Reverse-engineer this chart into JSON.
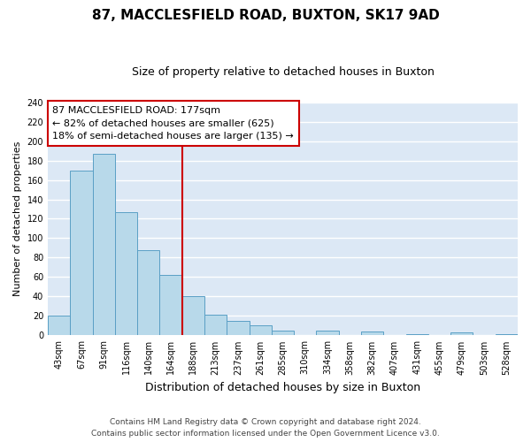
{
  "title": "87, MACCLESFIELD ROAD, BUXTON, SK17 9AD",
  "subtitle": "Size of property relative to detached houses in Buxton",
  "xlabel": "Distribution of detached houses by size in Buxton",
  "ylabel": "Number of detached properties",
  "bar_labels": [
    "43sqm",
    "67sqm",
    "91sqm",
    "116sqm",
    "140sqm",
    "164sqm",
    "188sqm",
    "213sqm",
    "237sqm",
    "261sqm",
    "285sqm",
    "310sqm",
    "334sqm",
    "358sqm",
    "382sqm",
    "407sqm",
    "431sqm",
    "455sqm",
    "479sqm",
    "503sqm",
    "528sqm"
  ],
  "bar_values": [
    20,
    170,
    187,
    127,
    88,
    62,
    40,
    21,
    15,
    10,
    5,
    0,
    5,
    0,
    4,
    0,
    1,
    0,
    3,
    0,
    1
  ],
  "bar_color": "#b8d9ea",
  "bar_edge_color": "#5a9fc5",
  "vline_color": "#cc0000",
  "ylim": [
    0,
    240
  ],
  "yticks": [
    0,
    20,
    40,
    60,
    80,
    100,
    120,
    140,
    160,
    180,
    200,
    220,
    240
  ],
  "annotation_box_text1": "87 MACCLESFIELD ROAD: 177sqm",
  "annotation_box_text2": "← 82% of detached houses are smaller (625)",
  "annotation_box_text3": "18% of semi-detached houses are larger (135) →",
  "annotation_box_color": "#cc0000",
  "annotation_box_fill": "#ffffff",
  "footer1": "Contains HM Land Registry data © Crown copyright and database right 2024.",
  "footer2": "Contains public sector information licensed under the Open Government Licence v3.0.",
  "fig_bg_color": "#ffffff",
  "axes_bg_color": "#dce8f5",
  "grid_color": "#ffffff",
  "title_fontsize": 11,
  "subtitle_fontsize": 9,
  "xlabel_fontsize": 9,
  "ylabel_fontsize": 8,
  "tick_fontsize": 7,
  "annotation_fontsize": 8,
  "footer_fontsize": 6.5
}
